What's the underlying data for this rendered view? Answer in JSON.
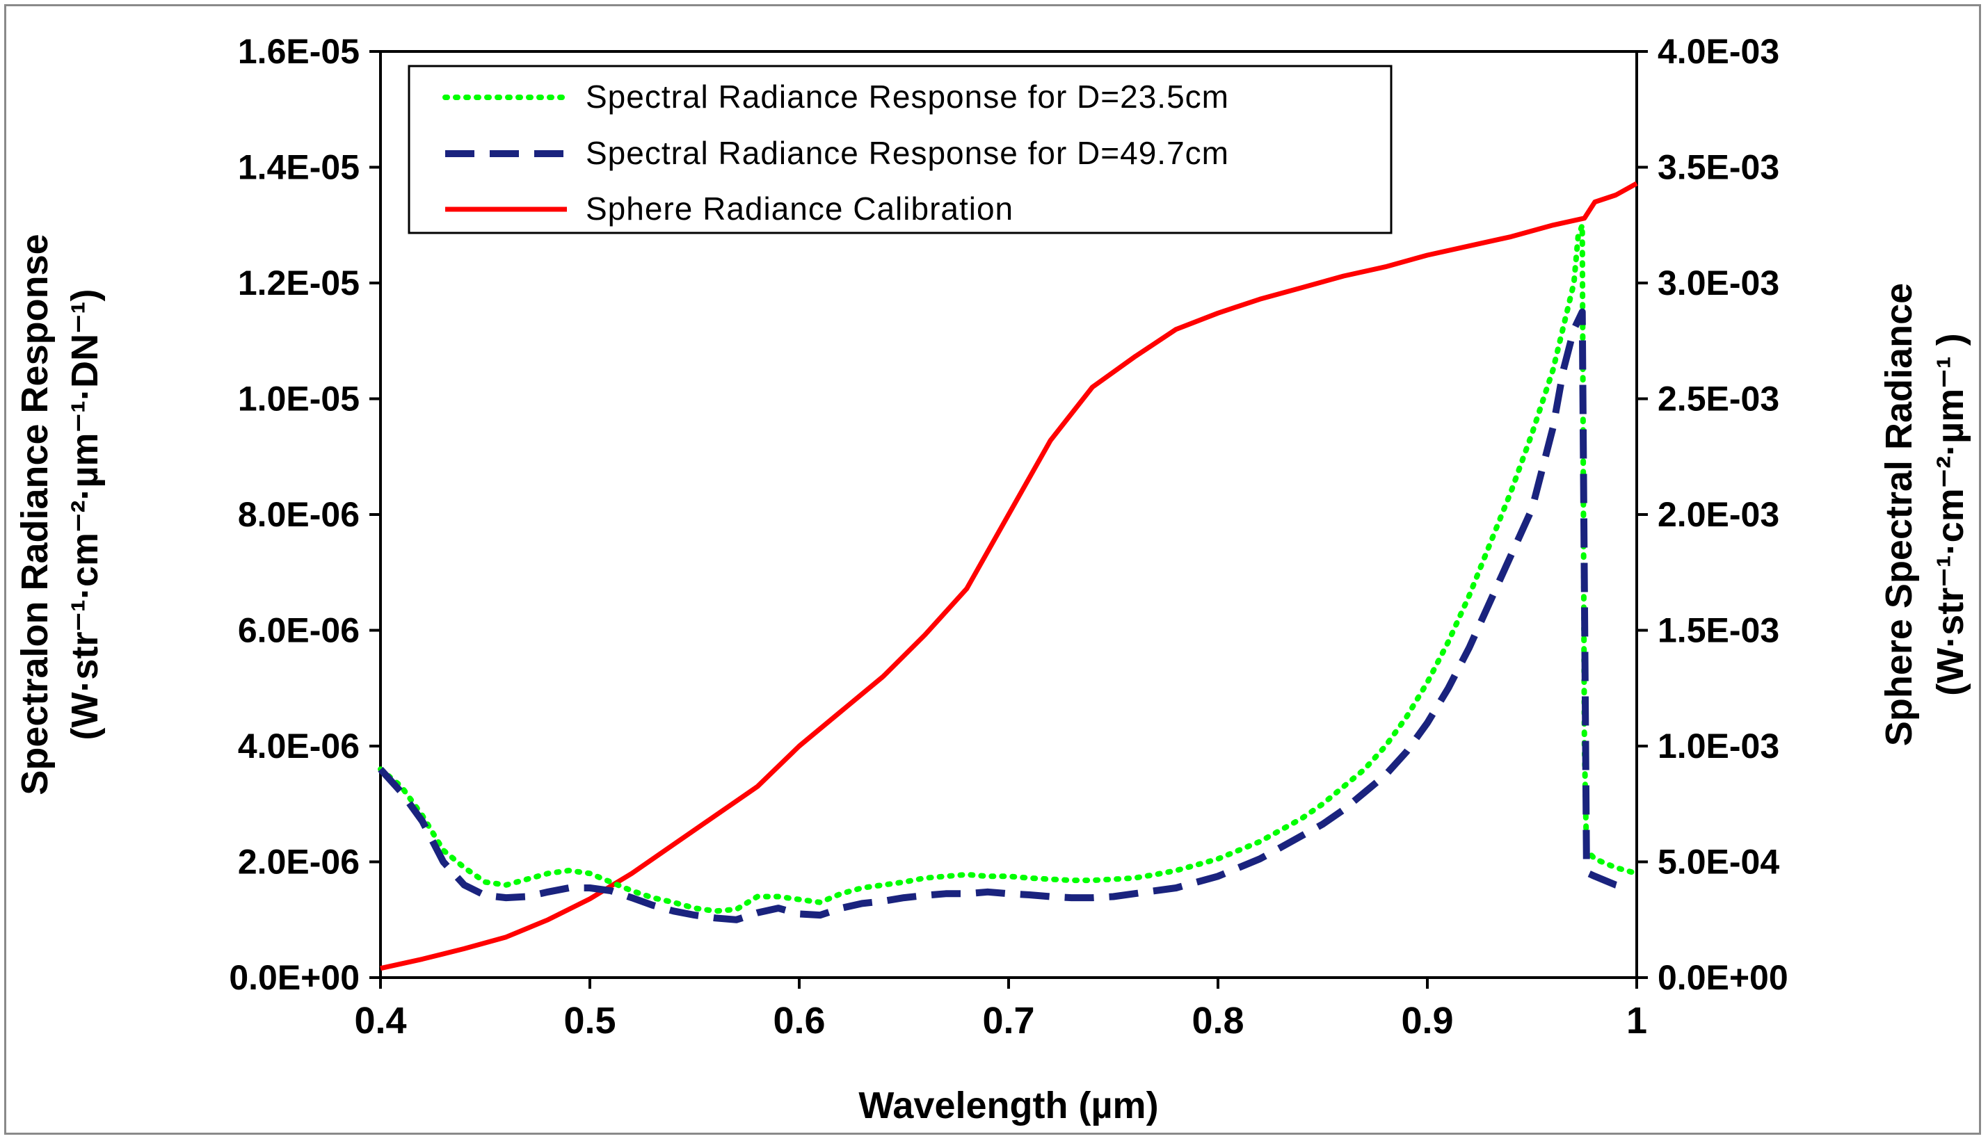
{
  "chart_data": {
    "type": "line",
    "title": "",
    "xlabel": "Wavelength (µm)",
    "ylabel_left_line1": "Spectralon Radiance Response",
    "ylabel_left_line2": "(W·str⁻¹·cm⁻²·µm⁻¹·DN⁻¹)",
    "ylabel_right_line1": "Sphere Spectral Radiance",
    "ylabel_right_line2": "(W·str⁻¹·cm⁻²·µm⁻¹ )",
    "xlim": [
      0.4,
      1.0
    ],
    "ylim_left": [
      0,
      1.6e-05
    ],
    "ylim_right": [
      0,
      0.004
    ],
    "x_ticks": [
      0.4,
      0.5,
      0.6,
      0.7,
      0.8,
      0.9,
      1.0
    ],
    "x_tick_labels": [
      "0.4",
      "0.5",
      "0.6",
      "0.7",
      "0.8",
      "0.9",
      "1"
    ],
    "y_left_ticks": [
      0,
      2e-06,
      4e-06,
      6e-06,
      8e-06,
      1e-05,
      1.2e-05,
      1.4e-05,
      1.6e-05
    ],
    "y_left_tick_labels": [
      "0.0E+00",
      "2.0E-06",
      "4.0E-06",
      "6.0E-06",
      "8.0E-06",
      "1.0E-05",
      "1.2E-05",
      "1.4E-05",
      "1.6E-05"
    ],
    "y_right_ticks": [
      0,
      0.0005,
      0.001,
      0.0015,
      0.002,
      0.0025,
      0.003,
      0.0035,
      0.004
    ],
    "y_right_tick_labels": [
      "0.0E+00",
      "5.0E-04",
      "1.0E-03",
      "1.5E-03",
      "2.0E-03",
      "2.5E-03",
      "3.0E-03",
      "3.5E-03",
      "4.0E-03"
    ],
    "grid": false,
    "legend_position": "top-left",
    "series": [
      {
        "name": "Spectral Radiance Response for D=23.5cm",
        "axis": "left",
        "color": "#00ff00",
        "style": "dotted",
        "x": [
          0.4,
          0.41,
          0.42,
          0.43,
          0.44,
          0.45,
          0.46,
          0.47,
          0.48,
          0.49,
          0.5,
          0.51,
          0.52,
          0.53,
          0.54,
          0.55,
          0.56,
          0.57,
          0.58,
          0.59,
          0.6,
          0.61,
          0.62,
          0.63,
          0.64,
          0.65,
          0.66,
          0.67,
          0.68,
          0.69,
          0.7,
          0.71,
          0.72,
          0.73,
          0.74,
          0.75,
          0.76,
          0.77,
          0.78,
          0.79,
          0.8,
          0.81,
          0.82,
          0.83,
          0.84,
          0.85,
          0.86,
          0.87,
          0.88,
          0.89,
          0.9,
          0.91,
          0.92,
          0.93,
          0.94,
          0.95,
          0.96,
          0.97,
          0.972,
          0.974,
          0.975,
          0.976,
          0.98,
          0.99,
          1.0
        ],
        "y": [
          3.6e-06,
          3.3e-06,
          2.8e-06,
          2.2e-06,
          1.9e-06,
          1.65e-06,
          1.6e-06,
          1.7e-06,
          1.8e-06,
          1.85e-06,
          1.8e-06,
          1.65e-06,
          1.5e-06,
          1.38e-06,
          1.3e-06,
          1.2e-06,
          1.15e-06,
          1.18e-06,
          1.4e-06,
          1.4e-06,
          1.35e-06,
          1.3e-06,
          1.45e-06,
          1.55e-06,
          1.6e-06,
          1.65e-06,
          1.72e-06,
          1.75e-06,
          1.78e-06,
          1.75e-06,
          1.75e-06,
          1.72e-06,
          1.7e-06,
          1.68e-06,
          1.68e-06,
          1.7e-06,
          1.72e-06,
          1.78e-06,
          1.85e-06,
          1.95e-06,
          2.05e-06,
          2.2e-06,
          2.35e-06,
          2.55e-06,
          2.75e-06,
          3e-06,
          3.3e-06,
          3.6e-06,
          4e-06,
          4.5e-06,
          5.1e-06,
          5.8e-06,
          6.6e-06,
          7.5e-06,
          8.4e-06,
          9.4e-06,
          1.05e-05,
          1.2e-05,
          1.28e-05,
          1.3e-05,
          4e-06,
          2.2e-06,
          2.05e-06,
          1.9e-06,
          1.8e-06
        ]
      },
      {
        "name": "Spectral Radiance Response for D=49.7cm",
        "axis": "left",
        "color": "#1a237e",
        "style": "dashed",
        "x": [
          0.4,
          0.41,
          0.42,
          0.43,
          0.44,
          0.45,
          0.46,
          0.47,
          0.48,
          0.49,
          0.5,
          0.51,
          0.52,
          0.53,
          0.54,
          0.55,
          0.56,
          0.57,
          0.58,
          0.59,
          0.6,
          0.61,
          0.62,
          0.63,
          0.64,
          0.65,
          0.66,
          0.67,
          0.68,
          0.69,
          0.7,
          0.71,
          0.72,
          0.73,
          0.74,
          0.75,
          0.76,
          0.77,
          0.78,
          0.79,
          0.8,
          0.81,
          0.82,
          0.83,
          0.84,
          0.85,
          0.86,
          0.87,
          0.88,
          0.89,
          0.9,
          0.91,
          0.92,
          0.93,
          0.94,
          0.95,
          0.96,
          0.965,
          0.97,
          0.974,
          0.976,
          0.977,
          0.98,
          0.99,
          0.995
        ],
        "y": [
          3.6e-06,
          3.2e-06,
          2.7e-06,
          2e-06,
          1.6e-06,
          1.42e-06,
          1.38e-06,
          1.4e-06,
          1.48e-06,
          1.55e-06,
          1.55e-06,
          1.5e-06,
          1.38e-06,
          1.25e-06,
          1.15e-06,
          1.08e-06,
          1.03e-06,
          1e-06,
          1.12e-06,
          1.2e-06,
          1.1e-06,
          1.08e-06,
          1.2e-06,
          1.28e-06,
          1.32e-06,
          1.38e-06,
          1.42e-06,
          1.45e-06,
          1.45e-06,
          1.48e-06,
          1.45e-06,
          1.43e-06,
          1.4e-06,
          1.38e-06,
          1.38e-06,
          1.4e-06,
          1.45e-06,
          1.5e-06,
          1.55e-06,
          1.65e-06,
          1.75e-06,
          1.9e-06,
          2.05e-06,
          2.25e-06,
          2.45e-06,
          2.65e-06,
          2.9e-06,
          3.2e-06,
          3.5e-06,
          3.9e-06,
          4.4e-06,
          5e-06,
          5.7e-06,
          6.5e-06,
          7.3e-06,
          8.1e-06,
          9.5e-06,
          1.05e-05,
          1.12e-05,
          1.15e-05,
          2e-06,
          1.8e-06,
          1.75e-06,
          1.6e-06,
          1.55e-06
        ]
      },
      {
        "name": "Sphere Radiance Calibration",
        "axis": "right",
        "color": "#ff0000",
        "style": "solid",
        "x": [
          0.4,
          0.42,
          0.44,
          0.46,
          0.48,
          0.5,
          0.52,
          0.54,
          0.56,
          0.58,
          0.6,
          0.62,
          0.64,
          0.66,
          0.68,
          0.7,
          0.72,
          0.74,
          0.76,
          0.78,
          0.8,
          0.82,
          0.84,
          0.86,
          0.88,
          0.9,
          0.92,
          0.94,
          0.96,
          0.975,
          0.98,
          0.99,
          1.0
        ],
        "y": [
          4e-05,
          8e-05,
          0.000125,
          0.000175,
          0.00025,
          0.00034,
          0.00045,
          0.000575,
          0.0007,
          0.000825,
          0.001,
          0.00115,
          0.0013,
          0.00148,
          0.00168,
          0.002,
          0.00232,
          0.00255,
          0.00268,
          0.0028,
          0.00287,
          0.00293,
          0.00298,
          0.00303,
          0.00307,
          0.00312,
          0.00316,
          0.0032,
          0.00325,
          0.00328,
          0.00335,
          0.00338,
          0.00343
        ]
      }
    ]
  }
}
